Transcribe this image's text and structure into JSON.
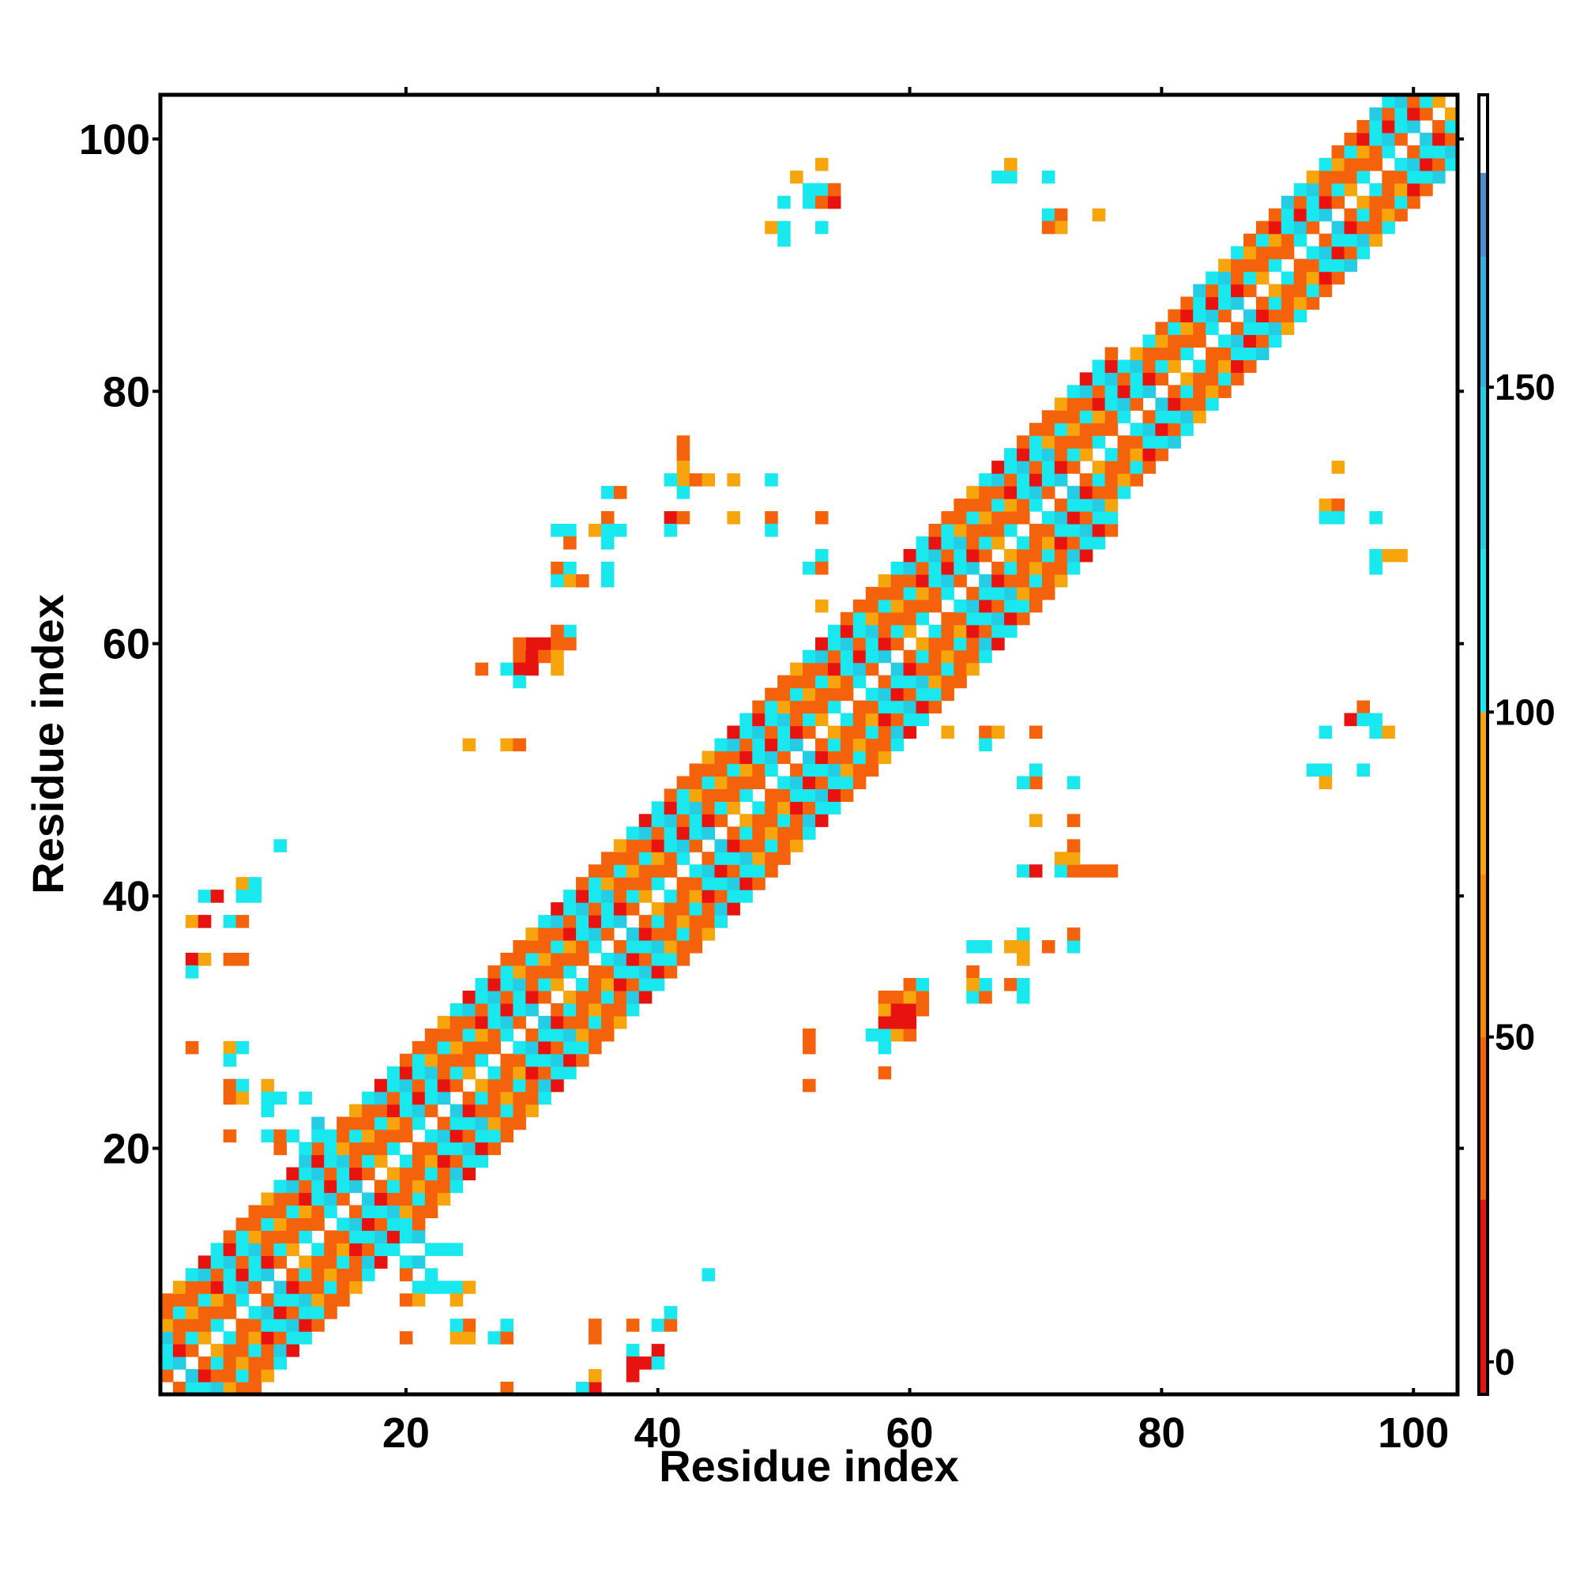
{
  "chart_data": {
    "type": "heatmap",
    "title": "",
    "xlabel": "Residue index",
    "ylabel": "Residue index",
    "xlim": [
      1,
      103
    ],
    "ylim": [
      1,
      103
    ],
    "x_ticks": [
      20,
      40,
      60,
      80,
      100
    ],
    "y_ticks": [
      20,
      40,
      60,
      80,
      100
    ],
    "colorbar": {
      "range": [
        -5,
        195
      ],
      "ticks": [
        0,
        50,
        100,
        150
      ],
      "bands": [
        {
          "from": -5,
          "to": 25,
          "color": "#e8130f"
        },
        {
          "from": 25,
          "to": 50,
          "color": "#f5620c"
        },
        {
          "from": 50,
          "to": 75,
          "color": "#f48a0b"
        },
        {
          "from": 75,
          "to": 100,
          "color": "#f7a50d"
        },
        {
          "from": 100,
          "to": 125,
          "color": "#19e8ee"
        },
        {
          "from": 125,
          "to": 150,
          "color": "#25cde4"
        },
        {
          "from": 150,
          "to": 170,
          "color": "#36aede"
        },
        {
          "from": 170,
          "to": 183,
          "color": "#4a8ed2"
        },
        {
          "from": 183,
          "to": 195,
          "color": "#ffffff"
        }
      ]
    },
    "value_classes": {
      "r": 12,
      "o": 40,
      "a": 75,
      "c": 115,
      "m": 140,
      "b": 165
    },
    "diagonal_band": {
      "pattern": [
        "c",
        "o",
        "r",
        "o",
        "c",
        "a",
        "o",
        "c",
        "m",
        "o"
      ],
      "segments": [
        {
          "from": 1,
          "to": 16,
          "halfwidth": 7
        },
        {
          "from": 16,
          "to": 30,
          "halfwidth": 8
        },
        {
          "from": 30,
          "to": 46,
          "halfwidth": 7
        },
        {
          "from": 46,
          "to": 60,
          "halfwidth": 8
        },
        {
          "from": 60,
          "to": 76,
          "halfwidth": 7
        },
        {
          "from": 76,
          "to": 103,
          "halfwidth": 6
        }
      ]
    },
    "contacts": [
      [
        3,
        38,
        "a"
      ],
      [
        4,
        40,
        "c"
      ],
      [
        4,
        38,
        "r"
      ],
      [
        5,
        40,
        "r"
      ],
      [
        6,
        38,
        "c"
      ],
      [
        3,
        35,
        "r"
      ],
      [
        4,
        35,
        "a"
      ],
      [
        6,
        35,
        "o"
      ],
      [
        7,
        35,
        "o"
      ],
      [
        3,
        34,
        "c"
      ],
      [
        7,
        41,
        "a"
      ],
      [
        8,
        41,
        "c"
      ],
      [
        8,
        40,
        "c"
      ],
      [
        7,
        40,
        "c"
      ],
      [
        7,
        38,
        "o"
      ],
      [
        3,
        28,
        "o"
      ],
      [
        6,
        28,
        "a"
      ],
      [
        7,
        28,
        "c"
      ],
      [
        6,
        27,
        "c"
      ],
      [
        6,
        25,
        "o"
      ],
      [
        7,
        25,
        "c"
      ],
      [
        6,
        24,
        "o"
      ],
      [
        7,
        24,
        "a"
      ],
      [
        6,
        21,
        "o"
      ],
      [
        9,
        25,
        "a"
      ],
      [
        9,
        24,
        "c"
      ],
      [
        10,
        24,
        "c"
      ],
      [
        9,
        23,
        "c"
      ],
      [
        9,
        21,
        "c"
      ],
      [
        10,
        21,
        "o"
      ],
      [
        10,
        20,
        "o"
      ],
      [
        11,
        21,
        "c"
      ],
      [
        12,
        20,
        "c"
      ],
      [
        12,
        19,
        "m"
      ],
      [
        13,
        22,
        "m"
      ],
      [
        13,
        21,
        "c"
      ],
      [
        14,
        21,
        "c"
      ],
      [
        12,
        24,
        "c"
      ],
      [
        10,
        44,
        "c"
      ],
      [
        20,
        13,
        "c"
      ],
      [
        21,
        13,
        "m"
      ],
      [
        22,
        12,
        "c"
      ],
      [
        23,
        12,
        "c"
      ],
      [
        20,
        11,
        "c"
      ],
      [
        21,
        11,
        "m"
      ],
      [
        20,
        10,
        "o"
      ],
      [
        22,
        10,
        "c"
      ],
      [
        21,
        9,
        "c"
      ],
      [
        22,
        9,
        "c"
      ],
      [
        23,
        9,
        "c"
      ],
      [
        24,
        9,
        "c"
      ],
      [
        25,
        9,
        "a"
      ],
      [
        20,
        8,
        "o"
      ],
      [
        21,
        8,
        "a"
      ],
      [
        24,
        8,
        "a"
      ],
      [
        24,
        12,
        "c"
      ],
      [
        20,
        5,
        "o"
      ],
      [
        24,
        5,
        "a"
      ],
      [
        25,
        5,
        "a"
      ],
      [
        27,
        5,
        "c"
      ],
      [
        28,
        5,
        "o"
      ],
      [
        25,
        6,
        "o"
      ],
      [
        24,
        6,
        "c"
      ],
      [
        28,
        6,
        "c"
      ],
      [
        28,
        1,
        "o"
      ],
      [
        35,
        1,
        "r"
      ],
      [
        34,
        1,
        "c"
      ],
      [
        35,
        2,
        "a"
      ],
      [
        35,
        5,
        "o"
      ],
      [
        35,
        6,
        "o"
      ],
      [
        38,
        6,
        "o"
      ],
      [
        38,
        4,
        "c"
      ],
      [
        38,
        3,
        "r"
      ],
      [
        39,
        3,
        "r"
      ],
      [
        40,
        4,
        "r"
      ],
      [
        40,
        3,
        "c"
      ],
      [
        40,
        6,
        "c"
      ],
      [
        41,
        6,
        "o"
      ],
      [
        41,
        7,
        "c"
      ],
      [
        44,
        10,
        "c"
      ],
      [
        38,
        2,
        "r"
      ],
      [
        51,
        97,
        "a"
      ],
      [
        52,
        96,
        "c"
      ],
      [
        53,
        96,
        "c"
      ],
      [
        52,
        95,
        "c"
      ],
      [
        53,
        95,
        "o"
      ],
      [
        54,
        95,
        "r"
      ],
      [
        53,
        98,
        "a"
      ],
      [
        50,
        95,
        "c"
      ],
      [
        49,
        93,
        "a"
      ],
      [
        50,
        93,
        "c"
      ],
      [
        50,
        92,
        "c"
      ],
      [
        53,
        93,
        "c"
      ],
      [
        54,
        96,
        "o"
      ],
      [
        67,
        97,
        "c"
      ],
      [
        68,
        97,
        "c"
      ],
      [
        68,
        98,
        "a"
      ],
      [
        71,
        97,
        "c"
      ],
      [
        71,
        94,
        "c"
      ],
      [
        72,
        94,
        "o"
      ],
      [
        72,
        93,
        "a"
      ],
      [
        71,
        93,
        "o"
      ],
      [
        75,
        94,
        "a"
      ],
      [
        42,
        76,
        "o"
      ],
      [
        42,
        75,
        "o"
      ],
      [
        42,
        74,
        "a"
      ],
      [
        42,
        73,
        "a"
      ],
      [
        42,
        72,
        "c"
      ],
      [
        41,
        73,
        "c"
      ],
      [
        43,
        73,
        "o"
      ],
      [
        44,
        73,
        "a"
      ],
      [
        46,
        73,
        "a"
      ],
      [
        49,
        73,
        "c"
      ],
      [
        41,
        70,
        "r"
      ],
      [
        42,
        70,
        "o"
      ],
      [
        41,
        69,
        "c"
      ],
      [
        46,
        70,
        "a"
      ],
      [
        49,
        70,
        "o"
      ],
      [
        49,
        69,
        "c"
      ],
      [
        53,
        70,
        "o"
      ],
      [
        36,
        72,
        "c"
      ],
      [
        37,
        72,
        "o"
      ],
      [
        36,
        70,
        "o"
      ],
      [
        35,
        69,
        "a"
      ],
      [
        36,
        69,
        "c"
      ],
      [
        37,
        69,
        "c"
      ],
      [
        32,
        69,
        "c"
      ],
      [
        33,
        69,
        "c"
      ],
      [
        33,
        68,
        "o"
      ],
      [
        36,
        68,
        "c"
      ],
      [
        32,
        66,
        "o"
      ],
      [
        33,
        66,
        "c"
      ],
      [
        33,
        65,
        "a"
      ],
      [
        34,
        65,
        "o"
      ],
      [
        32,
        65,
        "c"
      ],
      [
        36,
        66,
        "c"
      ],
      [
        36,
        65,
        "c"
      ],
      [
        53,
        67,
        "c"
      ],
      [
        52,
        66,
        "c"
      ],
      [
        53,
        66,
        "o"
      ],
      [
        53,
        63,
        "a"
      ],
      [
        30,
        60,
        "r"
      ],
      [
        31,
        60,
        "r"
      ],
      [
        32,
        60,
        "o"
      ],
      [
        33,
        61,
        "c"
      ],
      [
        32,
        61,
        "o"
      ],
      [
        29,
        60,
        "o"
      ],
      [
        29,
        59,
        "o"
      ],
      [
        30,
        59,
        "r"
      ],
      [
        31,
        59,
        "o"
      ],
      [
        32,
        59,
        "a"
      ],
      [
        33,
        60,
        "o"
      ],
      [
        29,
        58,
        "r"
      ],
      [
        30,
        58,
        "r"
      ],
      [
        32,
        58,
        "a"
      ],
      [
        28,
        58,
        "c"
      ],
      [
        26,
        58,
        "o"
      ],
      [
        29,
        57,
        "c"
      ],
      [
        25,
        52,
        "a"
      ],
      [
        28,
        52,
        "a"
      ],
      [
        29,
        52,
        "o"
      ],
      [
        42,
        49,
        "o"
      ],
      [
        58,
        29,
        "c"
      ],
      [
        59,
        29,
        "a"
      ],
      [
        60,
        29,
        "o"
      ],
      [
        58,
        30,
        "r"
      ],
      [
        59,
        30,
        "r"
      ],
      [
        60,
        30,
        "r"
      ],
      [
        58,
        31,
        "a"
      ],
      [
        59,
        31,
        "r"
      ],
      [
        60,
        31,
        "r"
      ],
      [
        61,
        31,
        "o"
      ],
      [
        58,
        32,
        "o"
      ],
      [
        59,
        32,
        "o"
      ],
      [
        60,
        32,
        "a"
      ],
      [
        61,
        32,
        "o"
      ],
      [
        60,
        33,
        "o"
      ],
      [
        61,
        33,
        "c"
      ],
      [
        57,
        29,
        "c"
      ],
      [
        58,
        28,
        "c"
      ],
      [
        58,
        26,
        "o"
      ],
      [
        52,
        29,
        "o"
      ],
      [
        52,
        28,
        "o"
      ],
      [
        52,
        25,
        "o"
      ],
      [
        65,
        34,
        "o"
      ],
      [
        65,
        32,
        "c"
      ],
      [
        66,
        32,
        "o"
      ],
      [
        66,
        33,
        "c"
      ],
      [
        65,
        33,
        "a"
      ],
      [
        68,
        33,
        "o"
      ],
      [
        69,
        33,
        "c"
      ],
      [
        69,
        32,
        "c"
      ],
      [
        65,
        36,
        "c"
      ],
      [
        66,
        36,
        "c"
      ],
      [
        68,
        36,
        "a"
      ],
      [
        69,
        36,
        "a"
      ],
      [
        69,
        37,
        "c"
      ],
      [
        69,
        35,
        "a"
      ],
      [
        71,
        36,
        "o"
      ],
      [
        73,
        36,
        "c"
      ],
      [
        73,
        37,
        "o"
      ],
      [
        69,
        42,
        "c"
      ],
      [
        70,
        42,
        "r"
      ],
      [
        72,
        42,
        "c"
      ],
      [
        73,
        42,
        "o"
      ],
      [
        74,
        42,
        "o"
      ],
      [
        75,
        42,
        "o"
      ],
      [
        76,
        42,
        "o"
      ],
      [
        72,
        43,
        "a"
      ],
      [
        73,
        43,
        "a"
      ],
      [
        73,
        44,
        "o"
      ],
      [
        70,
        46,
        "a"
      ],
      [
        73,
        46,
        "o"
      ],
      [
        70,
        49,
        "o"
      ],
      [
        69,
        49,
        "c"
      ],
      [
        70,
        50,
        "c"
      ],
      [
        73,
        49,
        "c"
      ],
      [
        63,
        53,
        "a"
      ],
      [
        66,
        53,
        "o"
      ],
      [
        67,
        53,
        "a"
      ],
      [
        66,
        52,
        "c"
      ],
      [
        70,
        53,
        "o"
      ],
      [
        92,
        50,
        "c"
      ],
      [
        93,
        50,
        "c"
      ],
      [
        93,
        49,
        "a"
      ],
      [
        96,
        50,
        "c"
      ],
      [
        93,
        53,
        "c"
      ],
      [
        95,
        54,
        "r"
      ],
      [
        96,
        55,
        "o"
      ],
      [
        96,
        54,
        "c"
      ],
      [
        97,
        54,
        "c"
      ],
      [
        97,
        53,
        "c"
      ],
      [
        98,
        53,
        "a"
      ],
      [
        93,
        71,
        "a"
      ],
      [
        94,
        71,
        "o"
      ],
      [
        93,
        70,
        "c"
      ],
      [
        94,
        70,
        "c"
      ],
      [
        97,
        70,
        "c"
      ],
      [
        94,
        74,
        "a"
      ],
      [
        97,
        67,
        "c"
      ],
      [
        97,
        66,
        "c"
      ],
      [
        98,
        67,
        "a"
      ],
      [
        99,
        67,
        "a"
      ]
    ]
  }
}
